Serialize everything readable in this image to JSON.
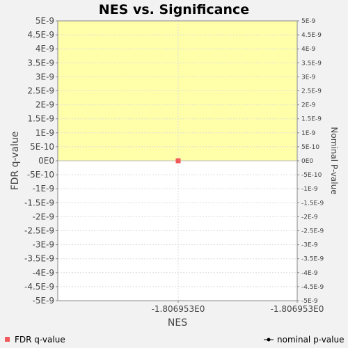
{
  "chart_data": {
    "type": "scatter",
    "title": "NES vs. Significance",
    "xlabel": "NES",
    "ylabel": "FDR q-value",
    "y2label": "Nominal P-value",
    "ylim": [
      -5e-09,
      5e-09
    ],
    "y2lim": [
      -5e-09,
      5e-09
    ],
    "y_ticks": [
      "5E-9",
      "4.5E-9",
      "4E-9",
      "3.5E-9",
      "3E-9",
      "2.5E-9",
      "2E-9",
      "1.5E-9",
      "1E-9",
      "5E-10",
      "0E0",
      "-5E-10",
      "-1E-9",
      "-1.5E-9",
      "-2E-9",
      "-2.5E-9",
      "-3E-9",
      "-3.5E-9",
      "-4E-9",
      "-4.5E-9",
      "-5E-9"
    ],
    "y2_ticks": [
      "5E-9",
      "4.5E-9",
      "4E-9",
      "3.5E-9",
      "3E-9",
      "2.5E-9",
      "2E-9",
      "1.5E-9",
      "1E-9",
      "5E-10",
      "0E0",
      "-5E-10",
      "-1E-9",
      "-1.5E-9",
      "-2E-9",
      "-2.5E-9",
      "-3E-9",
      "-3.5E-9",
      "-4E-9",
      "-4.5E-9",
      "-5E-9"
    ],
    "x_ticks": [
      "-1.806953E0",
      "-1.806953E0"
    ],
    "series": [
      {
        "name": "FDR q-value",
        "color": "#f05a5a",
        "marker": "square",
        "points": [
          {
            "x": -1.806953,
            "y": 0
          }
        ]
      },
      {
        "name": "nominal p-value",
        "color": "#000000",
        "marker": "dot-line",
        "points": []
      }
    ],
    "significance_band": {
      "from": 0,
      "to": 5e-09,
      "color": "#ffffaa"
    },
    "grid": true,
    "legend": "bottom"
  }
}
